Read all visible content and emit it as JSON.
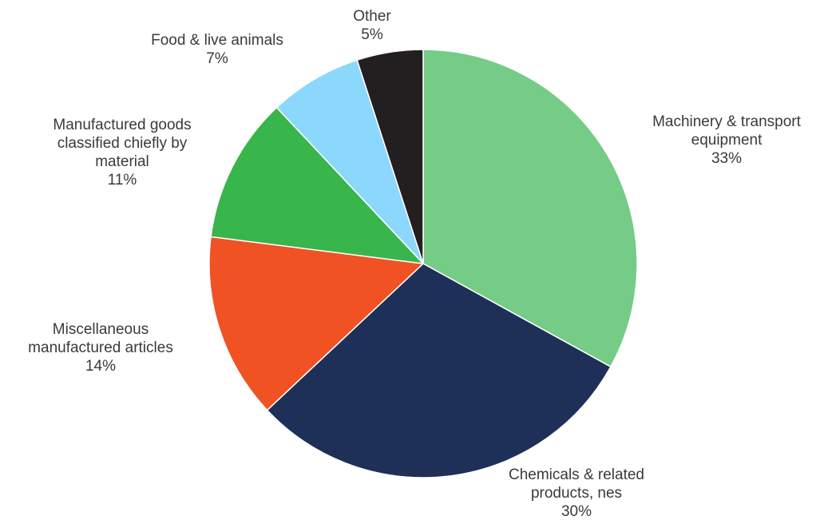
{
  "chart_data": {
    "type": "pie",
    "title": "",
    "start_angle_deg": 0,
    "direction": "clockwise",
    "slices": [
      {
        "label": "Machinery & transport equipment",
        "value": 33,
        "value_label": "33%",
        "color": "#74CC87"
      },
      {
        "label": "Chemicals & related products, nes",
        "value": 30,
        "value_label": "30%",
        "color": "#1E2F58"
      },
      {
        "label": "Miscellaneous manufactured articles",
        "value": 14,
        "value_label": "14%",
        "color": "#F05224"
      },
      {
        "label": "Manufactured goods classified chiefly by material",
        "value": 11,
        "value_label": "11%",
        "color": "#38B54B"
      },
      {
        "label": "Food & live animals",
        "value": 7,
        "value_label": "7%",
        "color": "#8BD8FC"
      },
      {
        "label": "Other",
        "value": 5,
        "value_label": "5%",
        "color": "#231F20"
      }
    ]
  }
}
